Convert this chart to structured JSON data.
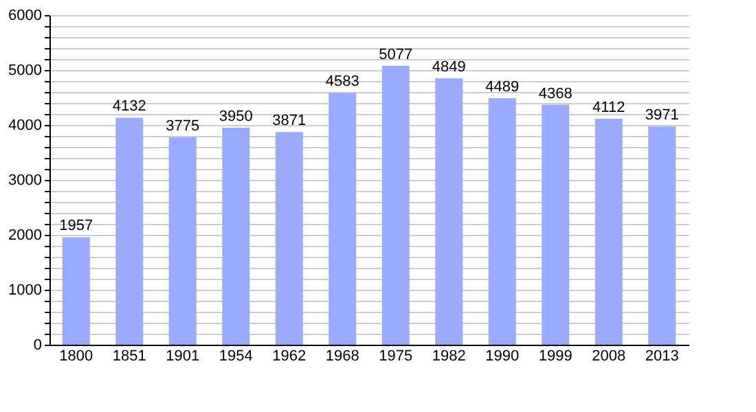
{
  "chart_data": {
    "type": "bar",
    "categories": [
      "1800",
      "1851",
      "1901",
      "1954",
      "1962",
      "1968",
      "1975",
      "1982",
      "1990",
      "1999",
      "2008",
      "2013"
    ],
    "values": [
      1957,
      4132,
      3775,
      3950,
      3871,
      4583,
      5077,
      4849,
      4489,
      4368,
      4112,
      3971
    ],
    "color": "#99aaff",
    "ylim": [
      0,
      6000
    ],
    "yticks": [
      0,
      {
        "value": 200,
        "label": null
      },
      {
        "value": 400,
        "label": null
      },
      {
        "value": 600,
        "label": null
      },
      {
        "value": 800,
        "label": null
      },
      1000,
      {
        "value": 1200,
        "label": null
      },
      {
        "value": 1400,
        "label": null
      },
      {
        "value": 1600,
        "label": null
      },
      {
        "value": 1800,
        "label": null
      },
      2000,
      {
        "value": 2200,
        "label": null
      },
      {
        "value": 2400,
        "label": null
      },
      {
        "value": 2600,
        "label": null
      },
      {
        "value": 2800,
        "label": null
      },
      3000,
      {
        "value": 3200,
        "label": null
      },
      {
        "value": 3400,
        "label": null
      },
      {
        "value": 3600,
        "label": null
      },
      {
        "value": 3800,
        "label": null
      },
      4000,
      {
        "value": 4200,
        "label": null
      },
      {
        "value": 4400,
        "label": null
      },
      {
        "value": 4600,
        "label": null
      },
      {
        "value": 4800,
        "label": null
      },
      5000,
      {
        "value": 5200,
        "label": null
      },
      {
        "value": 5400,
        "label": null
      },
      {
        "value": 5600,
        "label": null
      },
      {
        "value": 5800,
        "label": null
      },
      6000
    ],
    "grid": "y",
    "data_labels": true
  }
}
